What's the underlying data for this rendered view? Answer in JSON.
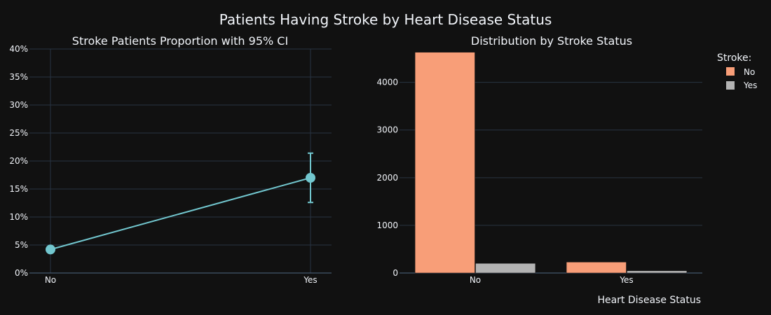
{
  "title": "Patients Having Stroke by Heart Disease Status",
  "colors": {
    "background": "#111111",
    "line": "#72c7cf",
    "no": "#f89e78",
    "yes": "#b3b3b3"
  },
  "legend": {
    "title": "Stroke:",
    "placement": "top-right",
    "items": [
      "No",
      "Yes"
    ]
  },
  "chart_data": [
    {
      "type": "line",
      "title": "Stroke Patients Proportion with 95% CI",
      "categories": [
        "No",
        "Yes"
      ],
      "values": [
        4.2,
        17.0
      ],
      "error_upper": [
        null,
        21.4
      ],
      "error_lower": [
        null,
        12.6
      ],
      "ylim": [
        0,
        40
      ],
      "yticks": [
        "0%",
        "5%",
        "10%",
        "15%",
        "20%",
        "25%",
        "30%",
        "35%",
        "40%"
      ],
      "grid": true
    },
    {
      "type": "bar",
      "title": "Distribution by Stroke Status",
      "xlabel": "Heart Disease Status",
      "categories": [
        "No",
        "Yes"
      ],
      "series": [
        {
          "name": "No",
          "values": [
            4632,
            229
          ]
        },
        {
          "name": "Yes",
          "values": [
            202,
            47
          ]
        }
      ],
      "ylim": [
        0,
        4700
      ],
      "yticks": [
        "0",
        "1000",
        "2000",
        "3000",
        "4000"
      ],
      "grid": true
    }
  ]
}
